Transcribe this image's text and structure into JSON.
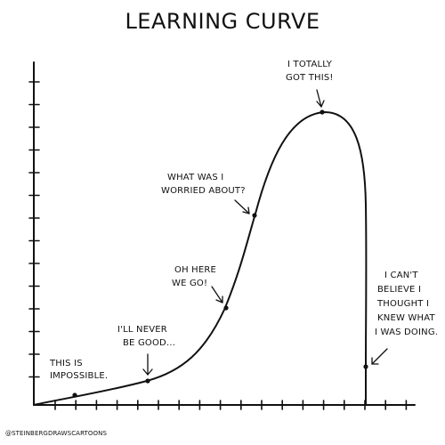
{
  "title": "LEARNING CURVE",
  "credit": "@STEINBERGDRAWSCARTOONS",
  "annotations": [
    {
      "id": "impossible",
      "lines": [
        "THIS IS",
        "IMPOSSIBLE."
      ]
    },
    {
      "id": "never-good",
      "lines": [
        "I'LL NEVER",
        "BE GOOD..."
      ]
    },
    {
      "id": "here-we-go",
      "lines": [
        "OH HERE",
        "WE GO!"
      ]
    },
    {
      "id": "worried",
      "lines": [
        "WHAT WAS I",
        "WORRIED ABOUT?"
      ]
    },
    {
      "id": "got-this",
      "lines": [
        "I TOTALLY",
        "GOT THIS!"
      ]
    },
    {
      "id": "cant-believe",
      "lines": [
        "I CAN'T",
        "BELIEVE I",
        "THOUGHT I",
        "KNEW WHAT",
        "I WAS DOING."
      ]
    }
  ],
  "colors": {
    "ink": "#111111",
    "background": "#ffffff"
  }
}
